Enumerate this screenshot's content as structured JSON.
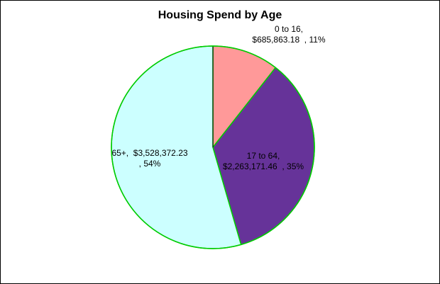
{
  "chart_data": {
    "type": "pie",
    "title": "Housing Spend by Age",
    "slices": [
      {
        "category": "0 to 16",
        "value": 685863.18,
        "percent": 11,
        "label_lines": [
          "0 to 16,",
          "$685,863.18  , 11%"
        ],
        "color": "#ff9999"
      },
      {
        "category": "17 to 64",
        "value": 2263171.46,
        "percent": 35,
        "label_lines": [
          "17 to 64,",
          "$2,263,171.46  , 35%"
        ],
        "color": "#663399"
      },
      {
        "category": "65+",
        "value": 3528372.23,
        "percent": 54,
        "label_lines": [
          "65+,  $3,528,372.23",
          ", 54%"
        ],
        "color": "#ccffff"
      }
    ],
    "slice_border_color": "#00cc00",
    "start_angle": "12 o'clock",
    "direction": "clockwise",
    "legend": "none"
  }
}
